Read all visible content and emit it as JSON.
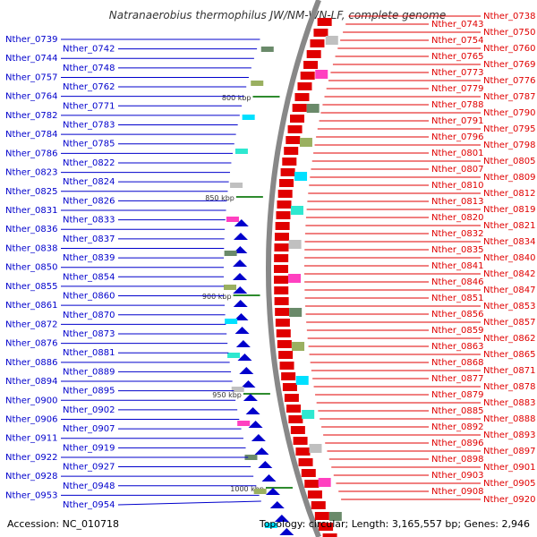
{
  "title": "Natranaerobius thermophilus JW/NM-WN-LF, complete genome",
  "accession": "Accession: NC_010718",
  "summary": "Topology: circular; Length: 3,165,557 bp; Genes: 2,946",
  "colors": {
    "forward": "#0000cc",
    "reverse": "#e00000",
    "backbone": "#888888",
    "tick": "#2e8b2e"
  },
  "kbp_ticks": [
    "800 kbp",
    "850 kbp",
    "900 kbp",
    "950 kbp",
    "1000 kbp"
  ],
  "forward_genes": [
    "Nther_0739",
    "Nther_0742",
    "Nther_0744",
    "Nther_0748",
    "Nther_0757",
    "Nther_0762",
    "Nther_0764",
    "Nther_0771",
    "Nther_0782",
    "Nther_0783",
    "Nther_0784",
    "Nther_0785",
    "Nther_0786",
    "Nther_0822",
    "Nther_0823",
    "Nther_0824",
    "Nther_0825",
    "Nther_0826",
    "Nther_0831",
    "Nther_0833",
    "Nther_0836",
    "Nther_0837",
    "Nther_0838",
    "Nther_0839",
    "Nther_0850",
    "Nther_0854",
    "Nther_0855",
    "Nther_0860",
    "Nther_0861",
    "Nther_0870",
    "Nther_0872",
    "Nther_0873",
    "Nther_0876",
    "Nther_0881",
    "Nther_0886",
    "Nther_0889",
    "Nther_0894",
    "Nther_0895",
    "Nther_0900",
    "Nther_0902",
    "Nther_0906",
    "Nther_0907",
    "Nther_0911",
    "Nther_0919",
    "Nther_0922",
    "Nther_0927",
    "Nther_0928",
    "Nther_0948",
    "Nther_0953",
    "Nther_0954"
  ],
  "reverse_genes": [
    "Nther_0738",
    "Nther_0743",
    "Nther_0750",
    "Nther_0754",
    "Nther_0760",
    "Nther_0765",
    "Nther_0769",
    "Nther_0773",
    "Nther_0776",
    "Nther_0779",
    "Nther_0787",
    "Nther_0788",
    "Nther_0790",
    "Nther_0791",
    "Nther_0795",
    "Nther_0796",
    "Nther_0798",
    "Nther_0801",
    "Nther_0805",
    "Nther_0807",
    "Nther_0809",
    "Nther_0810",
    "Nther_0812",
    "Nther_0813",
    "Nther_0819",
    "Nther_0820",
    "Nther_0821",
    "Nther_0832",
    "Nther_0834",
    "Nther_0835",
    "Nther_0840",
    "Nther_0841",
    "Nther_0842",
    "Nther_0846",
    "Nther_0847",
    "Nther_0851",
    "Nther_0853",
    "Nther_0856",
    "Nther_0857",
    "Nther_0859",
    "Nther_0862",
    "Nther_0863",
    "Nther_0865",
    "Nther_0868",
    "Nther_0871",
    "Nther_0877",
    "Nther_0878",
    "Nther_0879",
    "Nther_0883",
    "Nther_0885",
    "Nther_0888",
    "Nther_0892",
    "Nther_0893",
    "Nther_0896",
    "Nther_0897",
    "Nther_0898",
    "Nther_0901",
    "Nther_0903",
    "Nther_0905",
    "Nther_0908",
    "Nther_0920"
  ]
}
